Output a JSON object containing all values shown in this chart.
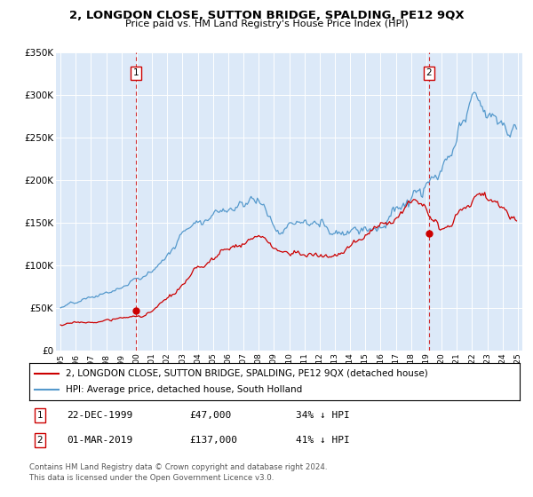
{
  "title": "2, LONGDON CLOSE, SUTTON BRIDGE, SPALDING, PE12 9QX",
  "subtitle": "Price paid vs. HM Land Registry's House Price Index (HPI)",
  "background_color": "#dce9f8",
  "plot_bg_color": "#dce9f8",
  "grid_color": "#ffffff",
  "red_line_color": "#cc0000",
  "blue_line_color": "#5599cc",
  "red_line_label": "2, LONGDON CLOSE, SUTTON BRIDGE, SPALDING, PE12 9QX (detached house)",
  "blue_line_label": "HPI: Average price, detached house, South Holland",
  "footnote": "Contains HM Land Registry data © Crown copyright and database right 2024.\nThis data is licensed under the Open Government Licence v3.0.",
  "sale1_date": "22-DEC-1999",
  "sale1_price": "£47,000",
  "sale1_note": "34% ↓ HPI",
  "sale1_x": 1999.97,
  "sale1_y": 47000,
  "sale2_date": "01-MAR-2019",
  "sale2_price": "£137,000",
  "sale2_note": "41% ↓ HPI",
  "sale2_x": 2019.17,
  "sale2_y": 137000,
  "ylim": [
    0,
    350000
  ],
  "yticks": [
    0,
    50000,
    100000,
    150000,
    200000,
    250000,
    300000,
    350000
  ],
  "ytick_labels": [
    "£0",
    "£50K",
    "£100K",
    "£150K",
    "£200K",
    "£250K",
    "£300K",
    "£350K"
  ],
  "xlim": [
    1994.7,
    2025.3
  ],
  "xticks": [
    1995,
    1996,
    1997,
    1998,
    1999,
    2000,
    2001,
    2002,
    2003,
    2004,
    2005,
    2006,
    2007,
    2008,
    2009,
    2010,
    2011,
    2012,
    2013,
    2014,
    2015,
    2016,
    2017,
    2018,
    2019,
    2020,
    2021,
    2022,
    2023,
    2024,
    2025
  ]
}
